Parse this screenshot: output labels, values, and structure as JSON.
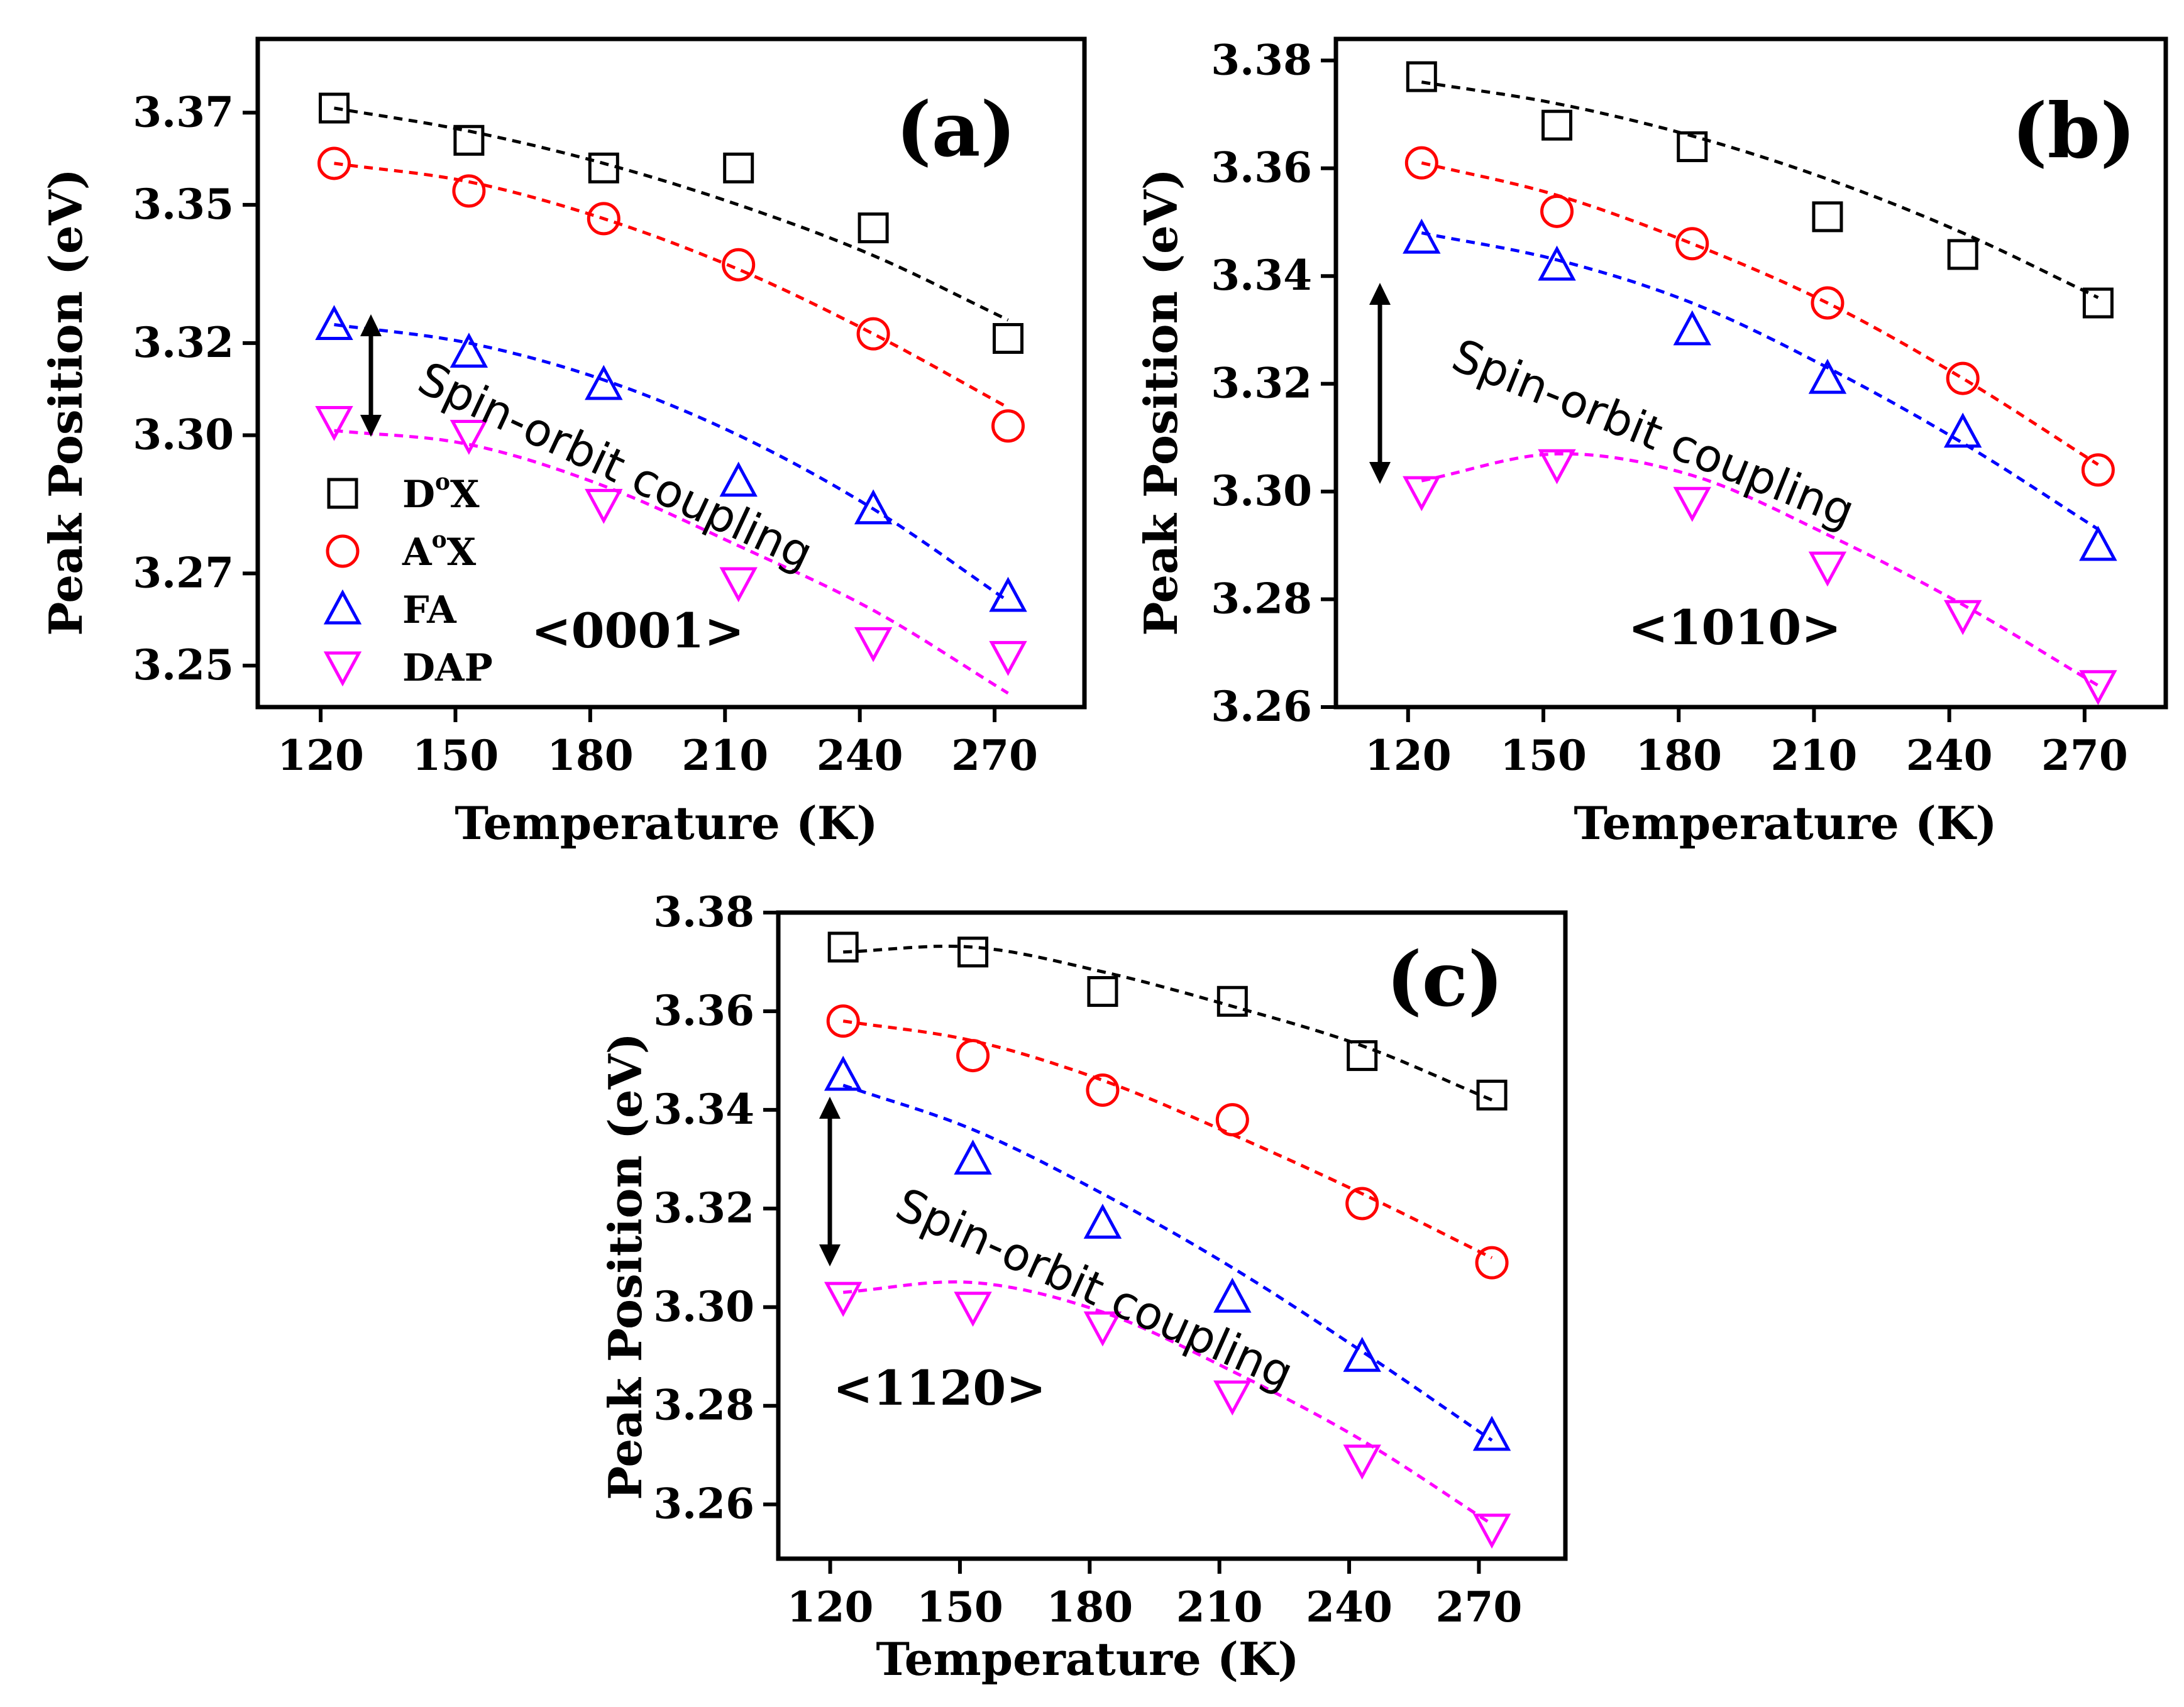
{
  "figure": {
    "series_styles": [
      {
        "key": "DoX",
        "color": "#000000",
        "marker": "square"
      },
      {
        "key": "AoX",
        "color": "#ff0000",
        "marker": "circle"
      },
      {
        "key": "FA",
        "color": "#0000ff",
        "marker": "triangle-up"
      },
      {
        "key": "DAP",
        "color": "#ff00ff",
        "marker": "triangle-down"
      }
    ],
    "legend": [
      {
        "base": "D",
        "sup": "o",
        "rest": "X"
      },
      {
        "base": "A",
        "sup": "o",
        "rest": "X"
      },
      {
        "base": "FA",
        "sup": "",
        "rest": ""
      },
      {
        "base": "DAP",
        "sup": "",
        "rest": ""
      }
    ],
    "annotation": "Spin-orbit coupling"
  },
  "chart_data": [
    {
      "type": "scatter",
      "panel_label": "(a)",
      "orientation": "<0001>",
      "xlabel": "Temperature (K)",
      "ylabel": "Peak Position (eV)",
      "xlim": [
        106,
        290
      ],
      "ylim": [
        3.241,
        3.386
      ],
      "xticks": [
        120,
        150,
        180,
        210,
        240,
        270
      ],
      "yticks": [
        3.25,
        3.27,
        3.3,
        3.32,
        3.35,
        3.37
      ],
      "ytick_labels": [
        "3.25",
        "3.27",
        "3.30",
        "3.32",
        "3.35",
        "3.37"
      ],
      "x": [
        123,
        153,
        183,
        213,
        243,
        273
      ],
      "series": [
        {
          "name": "DoX",
          "values": [
            3.371,
            3.364,
            3.358,
            3.358,
            3.345,
            3.321
          ],
          "fit": [
            3.371,
            3.366,
            3.359,
            3.35,
            3.339,
            3.325
          ]
        },
        {
          "name": "AoX",
          "values": [
            3.359,
            3.353,
            3.347,
            3.337,
            3.322,
            3.302
          ],
          "fit": [
            3.359,
            3.355,
            3.347,
            3.336,
            3.322,
            3.306
          ]
        },
        {
          "name": "FA",
          "values": [
            3.324,
            3.318,
            3.311,
            3.29,
            3.284,
            3.265
          ],
          "fit": [
            3.324,
            3.32,
            3.312,
            3.3,
            3.284,
            3.264
          ]
        },
        {
          "name": "DAP",
          "values": [
            3.303,
            3.3,
            3.285,
            3.268,
            3.255,
            3.252
          ],
          "fit": [
            3.301,
            3.298,
            3.289,
            3.276,
            3.262,
            3.244
          ]
        }
      ],
      "sample_legend": true
    },
    {
      "type": "scatter",
      "panel_label": "(b)",
      "orientation": "<1010>",
      "xlabel": "Temperature (K)",
      "ylabel": "Peak Position (eV)",
      "xlim": [
        104,
        288
      ],
      "ylim": [
        3.26,
        3.384
      ],
      "xticks": [
        120,
        150,
        180,
        210,
        240,
        270
      ],
      "yticks": [
        3.26,
        3.28,
        3.3,
        3.32,
        3.34,
        3.36,
        3.38
      ],
      "ytick_labels": [
        "3.26",
        "3.28",
        "3.30",
        "3.32",
        "3.34",
        "3.36",
        "3.38"
      ],
      "x": [
        123,
        153,
        183,
        213,
        243,
        273
      ],
      "series": [
        {
          "name": "DoX",
          "values": [
            3.377,
            3.368,
            3.364,
            3.351,
            3.344,
            3.335
          ],
          "fit": [
            3.376,
            3.372,
            3.366,
            3.358,
            3.348,
            3.336
          ]
        },
        {
          "name": "AoX",
          "values": [
            3.361,
            3.352,
            3.346,
            3.335,
            3.321,
            3.304
          ],
          "fit": [
            3.361,
            3.355,
            3.346,
            3.335,
            3.321,
            3.305
          ]
        },
        {
          "name": "FA",
          "values": [
            3.347,
            3.342,
            3.33,
            3.321,
            3.311,
            3.29
          ],
          "fit": [
            3.348,
            3.343,
            3.335,
            3.323,
            3.309,
            3.293
          ]
        },
        {
          "name": "DAP",
          "values": [
            3.3,
            3.305,
            3.298,
            3.286,
            3.277,
            3.264
          ],
          "fit": [
            3.302,
            3.307,
            3.303,
            3.292,
            3.279,
            3.264
          ]
        }
      ],
      "sample_legend": false
    },
    {
      "type": "scatter",
      "panel_label": "(c)",
      "orientation": "<1120>",
      "xlabel": "Temperature (K)",
      "ylabel": "Peak Position (eV)",
      "xlim": [
        108,
        290
      ],
      "ylim": [
        3.249,
        3.38
      ],
      "xticks": [
        120,
        150,
        180,
        210,
        240,
        270
      ],
      "yticks": [
        3.26,
        3.28,
        3.3,
        3.32,
        3.34,
        3.36,
        3.38
      ],
      "ytick_labels": [
        "3.26",
        "3.28",
        "3.30",
        "3.32",
        "3.34",
        "3.36",
        "3.38"
      ],
      "x": [
        123,
        153,
        183,
        213,
        243,
        273
      ],
      "series": [
        {
          "name": "DoX",
          "values": [
            3.373,
            3.372,
            3.364,
            3.362,
            3.351,
            3.343
          ],
          "fit": [
            3.372,
            3.373,
            3.368,
            3.361,
            3.353,
            3.342
          ]
        },
        {
          "name": "AoX",
          "values": [
            3.358,
            3.351,
            3.344,
            3.338,
            3.321,
            3.309
          ],
          "fit": [
            3.358,
            3.354,
            3.346,
            3.335,
            3.323,
            3.31
          ]
        },
        {
          "name": "FA",
          "values": [
            3.347,
            3.33,
            3.317,
            3.302,
            3.29,
            3.274
          ],
          "fit": [
            3.345,
            3.336,
            3.323,
            3.308,
            3.291,
            3.273
          ]
        },
        {
          "name": "DAP",
          "values": [
            3.302,
            3.3,
            3.296,
            3.282,
            3.269,
            3.255
          ],
          "fit": [
            3.303,
            3.305,
            3.299,
            3.287,
            3.273,
            3.256
          ]
        }
      ],
      "sample_legend": false
    }
  ]
}
